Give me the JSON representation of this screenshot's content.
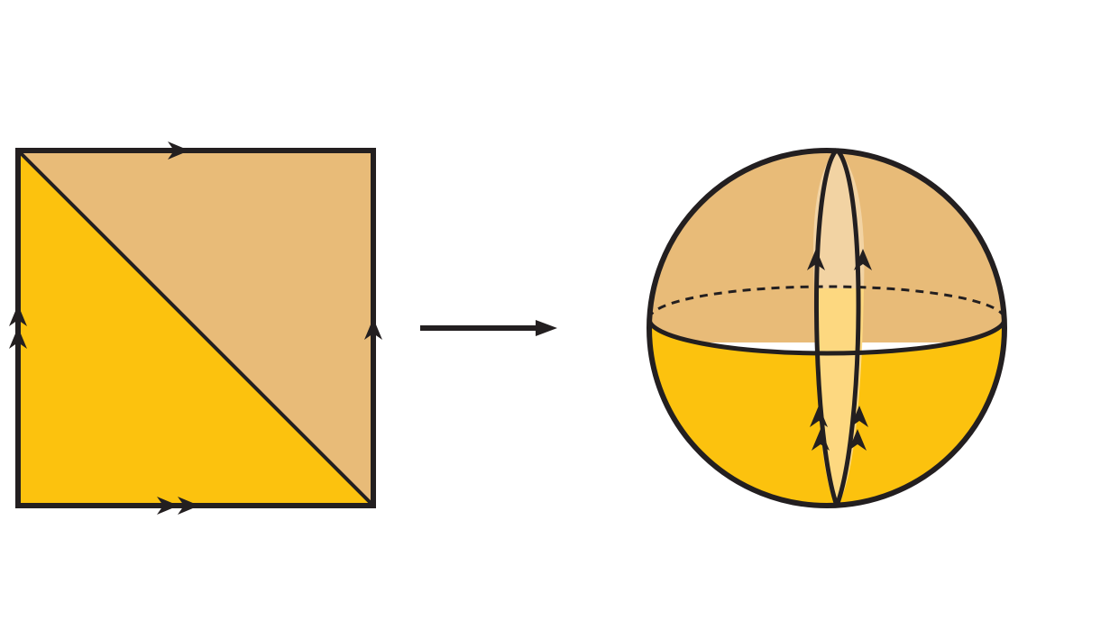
{
  "colors": {
    "stroke": "#231f20",
    "background": "#ffffff",
    "upper_tan": "#e8bb78",
    "lower_yellow": "#fcc20e",
    "band_upper_light": "#f2d3a3",
    "band_lower_light": "#fdd880"
  },
  "square": {
    "edge_markers": {
      "top": "single-arrow",
      "bottom": "double-arrow",
      "left": "double-arrow",
      "right": "single-arrow"
    }
  },
  "map_arrow": {
    "icon": "right-arrow-icon"
  },
  "sphere": {
    "equator_back_style": "dashed",
    "band_arrows": "pointing-up"
  }
}
